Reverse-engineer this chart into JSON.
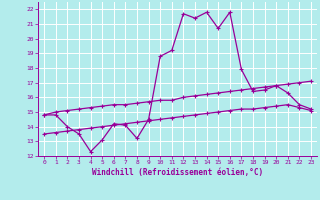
{
  "xlabel": "Windchill (Refroidissement éolien,°C)",
  "bg_color": "#b3ecec",
  "grid_color": "#c8e8e8",
  "line_color": "#990099",
  "xlim": [
    -0.5,
    23.5
  ],
  "ylim": [
    12,
    22.5
  ],
  "xticks": [
    0,
    1,
    2,
    3,
    4,
    5,
    6,
    7,
    8,
    9,
    10,
    11,
    12,
    13,
    14,
    15,
    16,
    17,
    18,
    19,
    20,
    21,
    22,
    23
  ],
  "yticks": [
    12,
    13,
    14,
    15,
    16,
    17,
    18,
    19,
    20,
    21,
    22
  ],
  "hours": [
    0,
    1,
    2,
    3,
    4,
    5,
    6,
    7,
    8,
    9,
    10,
    11,
    12,
    13,
    14,
    15,
    16,
    17,
    18,
    19,
    20,
    21,
    22,
    23
  ],
  "temp": [
    14.8,
    14.8,
    14.0,
    13.5,
    12.3,
    13.1,
    14.2,
    14.1,
    13.2,
    14.5,
    18.8,
    19.2,
    21.7,
    21.4,
    21.8,
    20.7,
    21.8,
    17.9,
    16.4,
    16.5,
    16.8,
    16.3,
    15.5,
    15.2
  ],
  "line_upper": [
    14.8,
    15.0,
    15.1,
    15.2,
    15.3,
    15.4,
    15.5,
    15.5,
    15.6,
    15.7,
    15.8,
    15.8,
    16.0,
    16.1,
    16.2,
    16.3,
    16.4,
    16.5,
    16.6,
    16.7,
    16.8,
    16.9,
    17.0,
    17.1
  ],
  "line_lower": [
    13.5,
    13.6,
    13.7,
    13.8,
    13.9,
    14.0,
    14.1,
    14.2,
    14.3,
    14.4,
    14.5,
    14.6,
    14.7,
    14.8,
    14.9,
    15.0,
    15.1,
    15.2,
    15.2,
    15.3,
    15.4,
    15.5,
    15.3,
    15.1
  ]
}
